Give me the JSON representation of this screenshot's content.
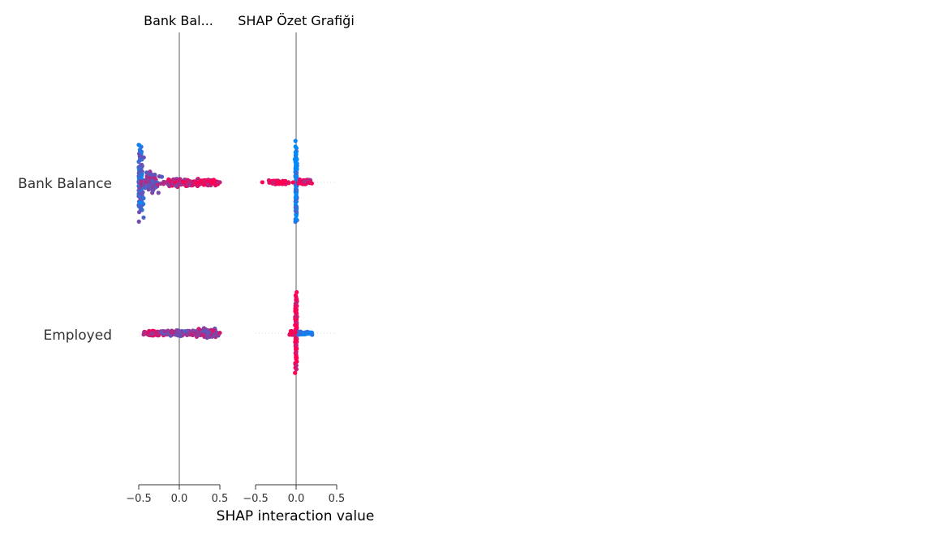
{
  "chart_data": {
    "type": "scatter",
    "subtype": "shap-interaction-summary",
    "xlabel": "SHAP interaction value",
    "xlim": [
      -0.5,
      0.5
    ],
    "xticks": [
      -0.5,
      0.0,
      0.5
    ],
    "xtick_labels": [
      "−0.5",
      "0.0",
      "0.5"
    ],
    "features": [
      "Bank Balance",
      "Employed"
    ],
    "panels": [
      {
        "title": "Bank Bal...",
        "rows": [
          {
            "feature": "Bank Balance",
            "x_range": [
              -0.5,
              0.5
            ],
            "clusters": [
              {
                "x": -0.48,
                "spread_x": 0.03,
                "spread_y": 0.72,
                "n": 140,
                "mix": 0.25
              },
              {
                "x": -0.35,
                "spread_x": 0.12,
                "spread_y": 0.22,
                "n": 80,
                "mix": 0.5
              },
              {
                "x": 0.0,
                "spread_x": 0.25,
                "spread_y": 0.08,
                "n": 120,
                "mix": 0.75
              },
              {
                "x": 0.35,
                "spread_x": 0.15,
                "spread_y": 0.06,
                "n": 90,
                "mix": 0.95
              }
            ]
          },
          {
            "feature": "Employed",
            "x_range": [
              -0.5,
              0.5
            ],
            "clusters": [
              {
                "x": -0.35,
                "spread_x": 0.15,
                "spread_y": 0.05,
                "n": 70,
                "mix": 0.8
              },
              {
                "x": 0.0,
                "spread_x": 0.25,
                "spread_y": 0.06,
                "n": 90,
                "mix": 0.55
              },
              {
                "x": 0.35,
                "spread_x": 0.15,
                "spread_y": 0.1,
                "n": 90,
                "mix": 0.6
              }
            ]
          }
        ]
      },
      {
        "title": "SHAP Özet Grafiği",
        "rows": [
          {
            "feature": "Bank Balance",
            "x_range": [
              -0.5,
              0.25
            ],
            "clusters": [
              {
                "x": 0.0,
                "spread_x": 0.01,
                "spread_y": 0.75,
                "n": 160,
                "mix": 0.1
              },
              {
                "x": -0.2,
                "spread_x": 0.13,
                "spread_y": 0.04,
                "n": 80,
                "mix": 1.0
              },
              {
                "x": 0.1,
                "spread_x": 0.1,
                "spread_y": 0.06,
                "n": 40,
                "mix": 0.9
              }
            ]
          },
          {
            "feature": "Employed",
            "x_range": [
              -0.1,
              0.25
            ],
            "clusters": [
              {
                "x": 0.0,
                "spread_x": 0.01,
                "spread_y": 0.75,
                "n": 160,
                "mix": 1.0
              },
              {
                "x": 0.12,
                "spread_x": 0.1,
                "spread_y": 0.03,
                "n": 50,
                "mix": 0.0
              },
              {
                "x": -0.05,
                "spread_x": 0.04,
                "spread_y": 0.04,
                "n": 30,
                "mix": 1.0
              }
            ]
          }
        ]
      }
    ],
    "colors": {
      "low": "#008bfb",
      "high": "#ff0052",
      "zero_line": "#999999",
      "guide_line": "#cccccc",
      "axis": "#333333"
    }
  }
}
